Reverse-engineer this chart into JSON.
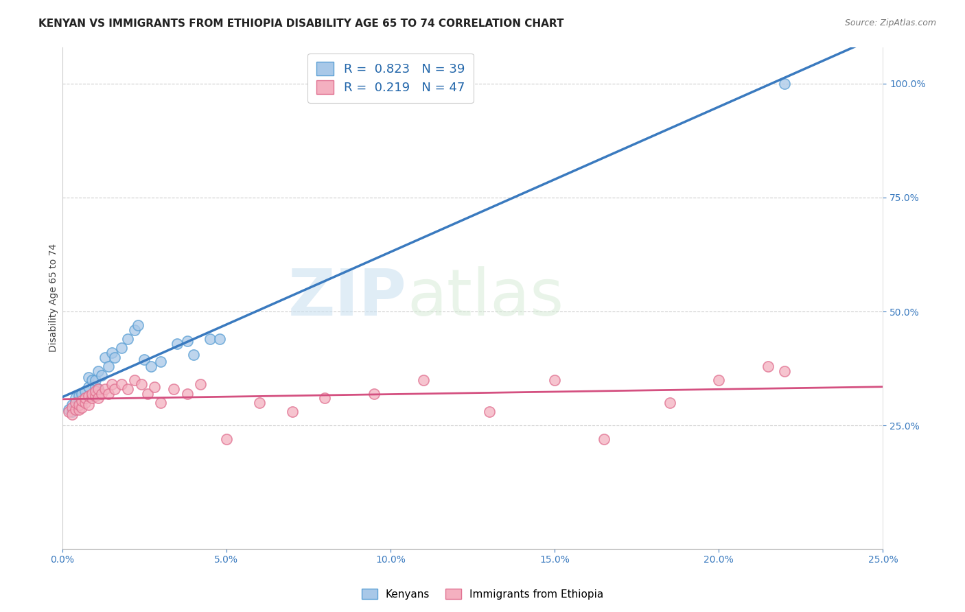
{
  "title": "KENYAN VS IMMIGRANTS FROM ETHIOPIA DISABILITY AGE 65 TO 74 CORRELATION CHART",
  "source_text": "Source: ZipAtlas.com",
  "ylabel": "Disability Age 65 to 74",
  "xlim": [
    0.0,
    0.25
  ],
  "ylim": [
    -0.02,
    1.08
  ],
  "blue_color": "#a8c8e8",
  "blue_edge_color": "#5a9fd4",
  "pink_color": "#f4b0c0",
  "pink_edge_color": "#e07090",
  "line_blue_color": "#3a7abf",
  "line_pink_color": "#d45080",
  "watermark_zip": "ZIP",
  "watermark_atlas": "atlas",
  "legend_label1": "Kenyans",
  "legend_label2": "Immigrants from Ethiopia",
  "kenyan_x": [
    0.002,
    0.003,
    0.003,
    0.004,
    0.004,
    0.004,
    0.005,
    0.005,
    0.005,
    0.006,
    0.006,
    0.007,
    0.007,
    0.008,
    0.008,
    0.009,
    0.009,
    0.01,
    0.01,
    0.011,
    0.011,
    0.012,
    0.013,
    0.014,
    0.015,
    0.016,
    0.018,
    0.02,
    0.022,
    0.023,
    0.025,
    0.027,
    0.03,
    0.035,
    0.038,
    0.04,
    0.045,
    0.048,
    0.22
  ],
  "kenyan_y": [
    0.285,
    0.28,
    0.295,
    0.29,
    0.3,
    0.31,
    0.295,
    0.305,
    0.315,
    0.3,
    0.32,
    0.31,
    0.325,
    0.335,
    0.355,
    0.315,
    0.35,
    0.335,
    0.35,
    0.33,
    0.37,
    0.36,
    0.4,
    0.38,
    0.41,
    0.4,
    0.42,
    0.44,
    0.46,
    0.47,
    0.395,
    0.38,
    0.39,
    0.43,
    0.435,
    0.405,
    0.44,
    0.44,
    1.0
  ],
  "ethiopia_x": [
    0.002,
    0.003,
    0.003,
    0.004,
    0.004,
    0.005,
    0.005,
    0.006,
    0.006,
    0.007,
    0.007,
    0.008,
    0.008,
    0.009,
    0.009,
    0.01,
    0.01,
    0.011,
    0.011,
    0.012,
    0.013,
    0.014,
    0.015,
    0.016,
    0.018,
    0.02,
    0.022,
    0.024,
    0.026,
    0.028,
    0.03,
    0.034,
    0.038,
    0.042,
    0.05,
    0.06,
    0.07,
    0.08,
    0.095,
    0.11,
    0.13,
    0.15,
    0.165,
    0.185,
    0.2,
    0.215,
    0.22
  ],
  "ethiopia_y": [
    0.28,
    0.29,
    0.275,
    0.285,
    0.3,
    0.285,
    0.295,
    0.29,
    0.305,
    0.3,
    0.31,
    0.295,
    0.315,
    0.31,
    0.32,
    0.315,
    0.325,
    0.31,
    0.33,
    0.32,
    0.33,
    0.32,
    0.34,
    0.33,
    0.34,
    0.33,
    0.35,
    0.34,
    0.32,
    0.335,
    0.3,
    0.33,
    0.32,
    0.34,
    0.22,
    0.3,
    0.28,
    0.31,
    0.32,
    0.35,
    0.28,
    0.35,
    0.22,
    0.3,
    0.35,
    0.38,
    0.37
  ],
  "title_fontsize": 11,
  "axis_label_fontsize": 10,
  "tick_fontsize": 10,
  "dot_size": 120,
  "background_color": "#ffffff",
  "grid_color": "#cccccc",
  "ytick_right_color": "#3a7abf",
  "xtick_color": "#3a7abf"
}
